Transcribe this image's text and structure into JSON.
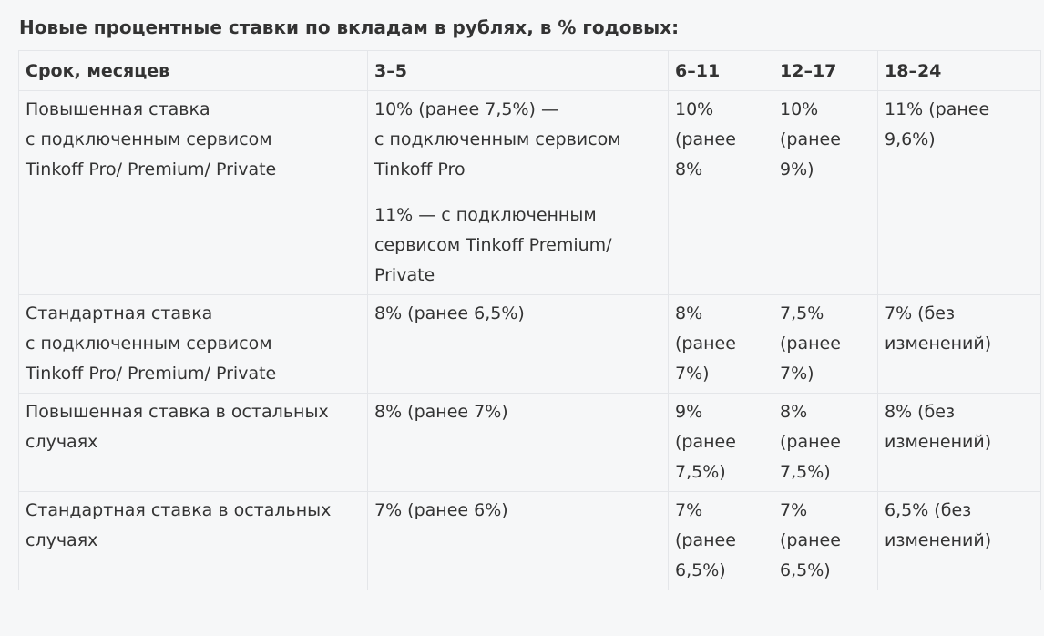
{
  "caption": "Новые процентные ставки по вкладам в рублях, в % годовых:",
  "table": {
    "headers": [
      "Срок, месяцев",
      "3–5",
      "6–11",
      "12–17",
      "18–24"
    ],
    "rows": [
      {
        "label": [
          "Повышенная ставка",
          "с подключенным сервисом",
          "Tinkoff Pro/ Premium/ Private"
        ],
        "c1": [
          [
            "10% (ранее 7,5%) —",
            "с подключенным сервисом",
            "Tinkoff Pro"
          ],
          [
            "11% — с подключенным",
            "сервисом Tinkoff Premium/",
            "Private"
          ]
        ],
        "c2": [
          "10%",
          "(ранее",
          "8%"
        ],
        "c3": [
          "10%",
          "(ранее",
          "9%)"
        ],
        "c4": [
          "11% (ранее",
          "9,6%)"
        ]
      },
      {
        "label": [
          "Стандартная ставка",
          "с подключенным сервисом",
          "Tinkoff Pro/ Premium/ Private"
        ],
        "c1": [
          [
            "8% (ранее 6,5%)"
          ]
        ],
        "c2": [
          "8%",
          "(ранее",
          "7%)"
        ],
        "c3": [
          "7,5%",
          "(ранее",
          "7%)"
        ],
        "c4": [
          "7% (без",
          "изменений)"
        ]
      },
      {
        "label": [
          "Повышенная ставка в остальных",
          "случаях"
        ],
        "c1": [
          [
            "8% (ранее 7%)"
          ]
        ],
        "c2": [
          "9%",
          "(ранее",
          "7,5%)"
        ],
        "c3": [
          "8%",
          "(ранее",
          "7,5%)"
        ],
        "c4": [
          "8% (без",
          "изменений)"
        ]
      },
      {
        "label": [
          "Стандартная ставка в остальных",
          "случаях"
        ],
        "c1": [
          [
            "7% (ранее 6%)"
          ]
        ],
        "c2": [
          "7%",
          "(ранее",
          "6,5%)"
        ],
        "c3": [
          "7%",
          "(ранее",
          "6,5%)"
        ],
        "c4": [
          "6,5% (без",
          "изменений)"
        ]
      }
    ]
  }
}
